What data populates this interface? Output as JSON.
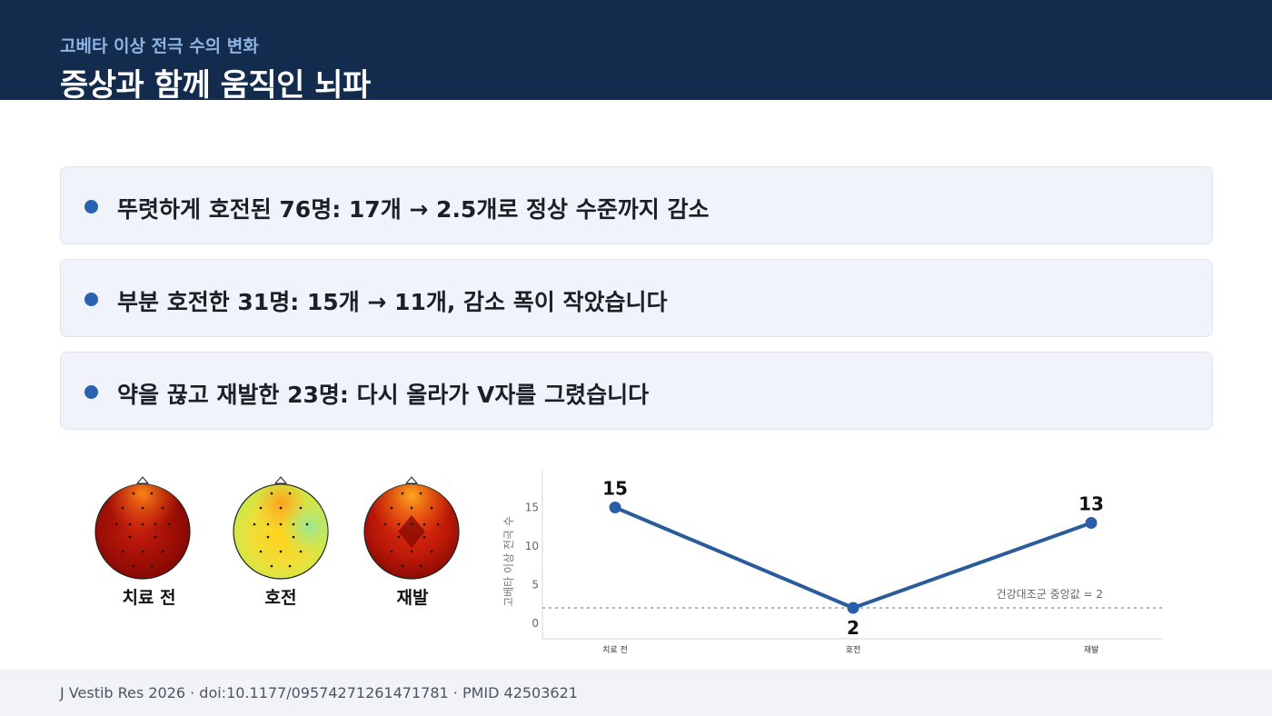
{
  "header": {
    "subtitle": "고베타 이상 전극 수의 변화",
    "title": "증상과 함께 움직인 뇌파"
  },
  "bullets": [
    "뚜렷하게 호전된 76명: 17개 → 2.5개로 정상 수준까지 감소",
    "부분 호전한 31명: 15개 → 11개, 감소 폭이 작았습니다",
    "약을 끊고 재발한 23명: 다시 올라가 V자를 그렸습니다"
  ],
  "topomaps": [
    {
      "label": "치료 전",
      "scheme": "hot"
    },
    {
      "label": "호전",
      "scheme": "mild"
    },
    {
      "label": "재발",
      "scheme": "hot"
    }
  ],
  "chart_data": {
    "type": "line",
    "categories": [
      "치료 전",
      "호전",
      "재발"
    ],
    "values": [
      15,
      2,
      13
    ],
    "data_labels": [
      "15",
      "2",
      "13"
    ],
    "ylabel": "고베타 이상 전극 수",
    "yticks": [
      "0",
      "5",
      "10",
      "15"
    ],
    "ylim": [
      -2,
      20
    ],
    "reference_line": {
      "value": 2,
      "label": "건강대조군 중앙값 = 2"
    },
    "line_color": "#2a5c9c",
    "grid": false
  },
  "footer": {
    "citation": "J Vestib Res 2026  ·  doi:10.1177/09574271261471781  ·  PMID 42503621"
  },
  "colors": {
    "header_bg": "#132b4c",
    "accent": "#2a63b4",
    "card_bg": "#f0f4fa"
  }
}
